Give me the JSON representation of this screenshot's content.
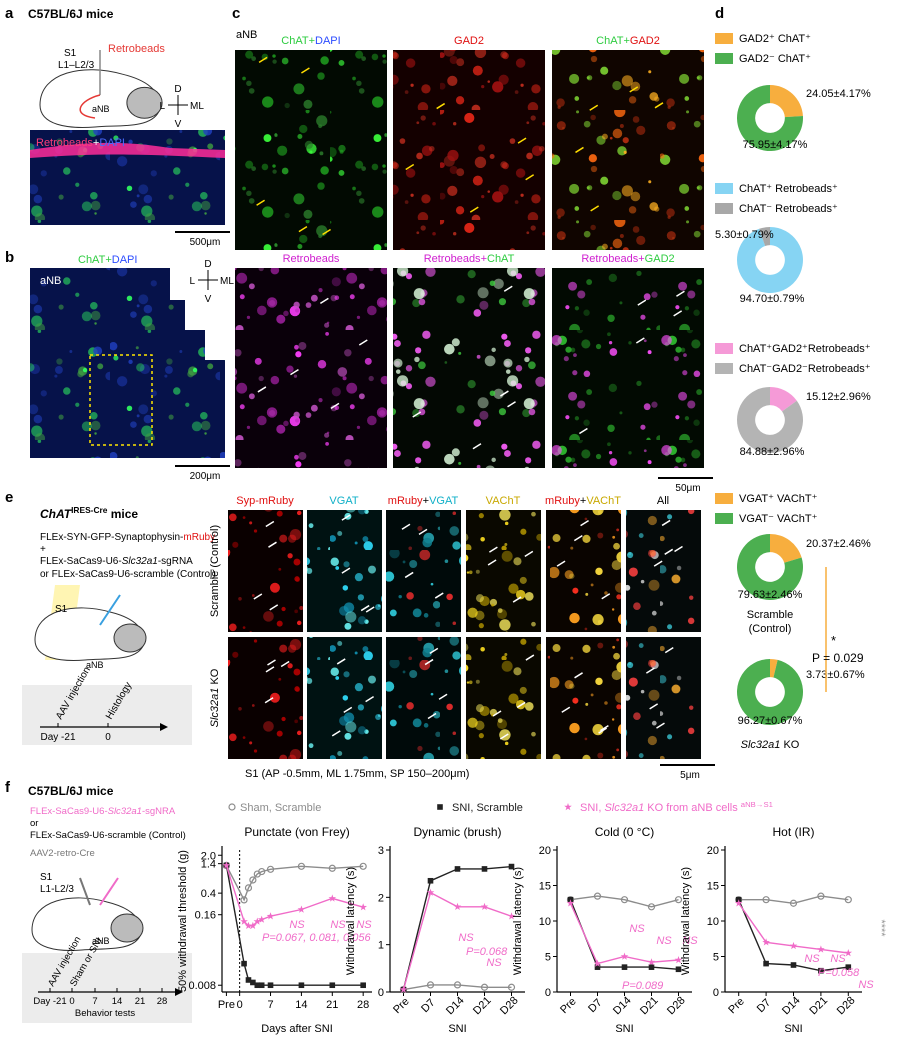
{
  "panel_labels": [
    "a",
    "b",
    "c",
    "d",
    "e",
    "f"
  ],
  "a": {
    "title": "C57BL/6J mice",
    "region": "S1",
    "layers": "L1–L2/3",
    "tracer": "Retrobeads",
    "target": "aNB",
    "compass": [
      "D",
      "L",
      "ML",
      "V"
    ],
    "stain": [
      "Retrobeads",
      "+",
      "DAPI"
    ],
    "scale": "500μm"
  },
  "b": {
    "stain": [
      "ChAT",
      "+",
      "DAPI"
    ],
    "region": "aNB",
    "compass": [
      "D",
      "L",
      "ML",
      "V"
    ],
    "scale": "200μm"
  },
  "c": {
    "region": "aNB",
    "images": [
      [
        "ChAT",
        "+",
        "DAPI"
      ],
      [
        "GAD2"
      ],
      [
        "ChAT",
        "+",
        "GAD2"
      ],
      [
        "Retrobeads"
      ],
      [
        "Retrobeads",
        "+",
        "ChAT"
      ],
      [
        "Retrobeads",
        "+",
        "GAD2"
      ]
    ],
    "scale": "50μm"
  },
  "e": {
    "mouse": [
      "ChAT",
      "IRES-Cre",
      " mice"
    ],
    "virus1": [
      "FLEx-SYN-GFP-Synaptophysin-",
      "mRuby"
    ],
    "plus": "+",
    "virus2": [
      "FLEx-SaCas9-U6-",
      "Slc32a1",
      "-sgRNA"
    ],
    "virus3": "or FLEx-SaCas9-U6-scramble (Control)",
    "region": "S1",
    "target": "aNB",
    "timeline": {
      "events": [
        "AAV injection",
        "Histology"
      ],
      "days": [
        "Day -21",
        "0"
      ]
    },
    "channels": [
      [
        "Syp-mRuby"
      ],
      [
        "VGAT"
      ],
      [
        "mRuby",
        "+",
        "VGAT"
      ],
      [
        "VAChT"
      ],
      [
        "mRuby",
        "+",
        "VAChT"
      ],
      [
        "All"
      ]
    ],
    "rows": [
      [
        "Scramble (Control)"
      ],
      [
        "Slc32a1",
        " KO"
      ]
    ],
    "caption": "S1 (AP -0.5mm, ML 1.75mm, SP 150–200μm)",
    "scale": "5μm",
    "pie_captions": [
      [
        "Scramble",
        "(Control)"
      ],
      [
        "Slc32a1",
        " KO"
      ]
    ],
    "stats": {
      "star": "*",
      "p": "P = 0.029"
    }
  },
  "f": {
    "title": "C57BL/6J mice",
    "virus1": [
      "FLEx-SaCas9-U6-",
      "Slc32a1",
      "-sgNRA"
    ],
    "or": "or",
    "virus2": "FLEx-SaCas9-U6-scramble (Control)",
    "virus3": "AAV2-retro-Cre",
    "region": "S1",
    "layers": "L1-L2/3",
    "target": "aNB",
    "timeline": {
      "events": [
        "AAV injection",
        "Sham or SNI"
      ],
      "days": [
        "Day -21",
        "0",
        "7",
        "14",
        "21",
        "28"
      ],
      "label": "Behavior tests"
    },
    "legend": [
      [
        "Sham, Scramble"
      ],
      [
        "SNI, Scramble"
      ],
      [
        "SNI, ",
        "Slc32a1",
        " KO from aNB cells ",
        "aNB→S1"
      ]
    ]
  },
  "chart_data": [
    {
      "type": "pie",
      "categories": [
        "GAD2⁺ ChAT⁺",
        "GAD2⁻ ChAT⁺"
      ],
      "values": [
        24.05,
        75.95
      ],
      "value_labels": [
        "24.05±4.17%",
        "75.95±4.17%"
      ],
      "colors": [
        "#f7ae3e",
        "#4caf50"
      ]
    },
    {
      "type": "pie",
      "categories": [
        "ChAT⁺ Retrobeads⁺",
        "ChAT⁻ Retrobeads⁺"
      ],
      "values": [
        94.7,
        5.3
      ],
      "value_labels": [
        "94.70±0.79%",
        "5.30±0.79%"
      ],
      "colors": [
        "#86d4f3",
        "#a8a8a8"
      ]
    },
    {
      "type": "pie",
      "categories": [
        "ChAT⁺GAD2⁺Retrobeads⁺",
        "ChAT⁻GAD2⁻Retrobeads⁺"
      ],
      "values": [
        15.12,
        84.88
      ],
      "value_labels": [
        "15.12±2.96%",
        "84.88±2.96%"
      ],
      "colors": [
        "#f59ad7",
        "#b4b4b4"
      ]
    },
    {
      "type": "pie",
      "categories": [
        "VGAT⁺ VAChT⁺",
        "VGAT⁻ VAChT⁺"
      ],
      "values": [
        20.37,
        79.63
      ],
      "value_labels": [
        "20.37±2.46%",
        "79.63±2.46%"
      ],
      "colors": [
        "#f7ae3e",
        "#4caf50"
      ]
    },
    {
      "type": "pie",
      "values": [
        3.73,
        96.27
      ],
      "value_labels": [
        "3.73±0.67%",
        "96.27±0.67%"
      ],
      "colors": [
        "#f7ae3e",
        "#4caf50"
      ]
    },
    {
      "type": "line",
      "title": "Punctate (von Frey)",
      "x_label": "Days after SNI",
      "y_label": "50% withdrawal threshold (g)",
      "x": [
        -3,
        1,
        2,
        3,
        4,
        5,
        7,
        14,
        21,
        28
      ],
      "xlim": [
        -4,
        30
      ],
      "xticks": [
        {
          "value": -3,
          "label": "Pre"
        },
        0,
        7,
        14,
        21,
        28
      ],
      "log_scale": true,
      "ylim": [
        0.006,
        2.5
      ],
      "yticks": [
        0.008,
        0.16,
        0.4,
        1.4,
        {
          "value": 2,
          "label": "2.0"
        }
      ],
      "series": [
        {
          "color": "#8c8c8c",
          "values": [
            1.3,
            0.3,
            0.5,
            0.7,
            0.9,
            1.0,
            1.1,
            1.25,
            1.15,
            1.25
          ]
        },
        {
          "color": "#222222",
          "values": [
            1.3,
            0.02,
            0.01,
            0.009,
            0.008,
            0.008,
            0.008,
            0.008,
            0.008,
            0.008
          ]
        },
        {
          "color": "#f06bc8",
          "values": [
            1.3,
            0.12,
            0.1,
            0.1,
            0.12,
            0.13,
            0.15,
            0.2,
            0.32,
            0.22
          ]
        }
      ],
      "annotations": [
        "NS",
        "NS",
        "NS",
        "P=0.067, 0.081, 0.056"
      ]
    },
    {
      "type": "line",
      "title": "Dynamic (brush)",
      "x_label": "SNI",
      "y_label": "Withdrawal latency (s)",
      "categories": [
        "Pre",
        "D7",
        "D14",
        "D21",
        "D28"
      ],
      "ylim": [
        0,
        3
      ],
      "yticks": [
        0,
        1,
        2,
        3
      ],
      "series": [
        {
          "color": "#8c8c8c",
          "values": [
            0.05,
            0.15,
            0.15,
            0.1,
            0.1
          ]
        },
        {
          "color": "#222222",
          "values": [
            0.05,
            2.35,
            2.6,
            2.6,
            2.65
          ]
        },
        {
          "color": "#f06bc8",
          "values": [
            0.05,
            2.1,
            1.8,
            1.8,
            1.6
          ]
        }
      ],
      "annotations": [
        "NS",
        "P=0.068",
        "NS"
      ]
    },
    {
      "type": "line",
      "title": "Cold (0 °C)",
      "x_label": "SNI",
      "y_label": "Withdrawal latency (s)",
      "categories": [
        "Pre",
        "D7",
        "D14",
        "D21",
        "D28"
      ],
      "ylim": [
        0,
        20
      ],
      "yticks": [
        0,
        5,
        10,
        15,
        20
      ],
      "series": [
        {
          "color": "#8c8c8c",
          "values": [
            13,
            13.5,
            13,
            12,
            13
          ]
        },
        {
          "color": "#222222",
          "values": [
            13,
            3.5,
            3.5,
            3.5,
            3.2
          ]
        },
        {
          "color": "#f06bc8",
          "values": [
            12.5,
            4,
            5,
            4.2,
            4.5
          ]
        }
      ],
      "annotations": [
        "NS",
        "NS",
        "NS",
        "P=0.089"
      ]
    },
    {
      "type": "line",
      "title": "Hot (IR)",
      "x_label": "SNI",
      "y_label": "Withdrawal latency (s)",
      "categories": [
        "Pre",
        "D7",
        "D14",
        "D21",
        "D28"
      ],
      "ylim": [
        0,
        20
      ],
      "yticks": [
        0,
        5,
        10,
        15,
        20
      ],
      "series": [
        {
          "color": "#8c8c8c",
          "values": [
            13,
            13,
            12.5,
            13.5,
            13
          ]
        },
        {
          "color": "#222222",
          "values": [
            13,
            4,
            3.8,
            3,
            3.5
          ]
        },
        {
          "color": "#f06bc8",
          "values": [
            12.5,
            7,
            6.5,
            6,
            5.5
          ]
        }
      ],
      "annotations": [
        "NS",
        "NS",
        "P=0.058",
        "NS",
        "****"
      ]
    }
  ]
}
